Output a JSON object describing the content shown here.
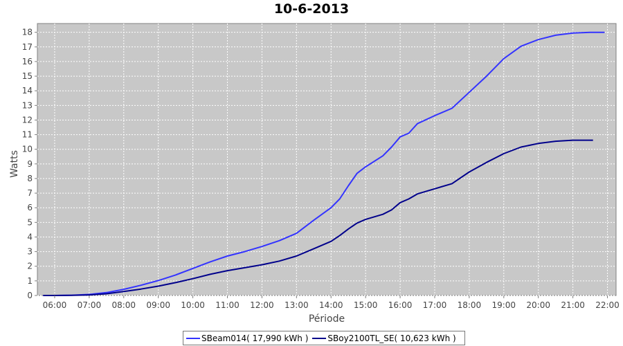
{
  "chart_data": {
    "type": "line",
    "title": "10-6-2013",
    "xlabel": "Période",
    "ylabel": "Watts",
    "xlim": [
      "05:30",
      "22:15"
    ],
    "ylim": [
      0,
      18.6
    ],
    "xticks": [
      "06:00",
      "07:00",
      "08:00",
      "09:00",
      "10:00",
      "11:00",
      "12:00",
      "13:00",
      "14:00",
      "15:00",
      "16:00",
      "17:00",
      "18:00",
      "19:00",
      "20:00",
      "21:00",
      "22:00"
    ],
    "yticks": [
      0,
      1,
      2,
      3,
      4,
      5,
      6,
      7,
      8,
      9,
      10,
      11,
      12,
      13,
      14,
      15,
      16,
      17,
      18
    ],
    "grid": true,
    "legend_position": "bottom",
    "background": "#c8c8c8",
    "series": [
      {
        "name": "SBeam014( 17,990 kWh )",
        "color": "#3333ff",
        "x": [
          "05:40",
          "06:00",
          "06:30",
          "07:00",
          "07:30",
          "08:00",
          "08:30",
          "09:00",
          "09:30",
          "10:00",
          "10:30",
          "11:00",
          "11:30",
          "12:00",
          "12:30",
          "13:00",
          "13:30",
          "14:00",
          "14:15",
          "14:30",
          "14:45",
          "15:00",
          "15:30",
          "15:45",
          "16:00",
          "16:15",
          "16:30",
          "17:00",
          "17:30",
          "18:00",
          "18:30",
          "19:00",
          "19:30",
          "20:00",
          "20:30",
          "21:00",
          "21:30",
          "21:55"
        ],
        "values": [
          0,
          0,
          0.02,
          0.07,
          0.2,
          0.42,
          0.7,
          1.02,
          1.4,
          1.85,
          2.3,
          2.7,
          3.0,
          3.35,
          3.75,
          4.25,
          5.15,
          6.0,
          6.6,
          7.5,
          8.35,
          8.8,
          9.55,
          10.15,
          10.85,
          11.1,
          11.75,
          12.3,
          12.8,
          13.9,
          15.0,
          16.2,
          17.05,
          17.5,
          17.8,
          17.95,
          18.0,
          18.0
        ]
      },
      {
        "name": "SBoy2100TL_SE( 10,623 kWh )",
        "color": "#00008b",
        "x": [
          "05:40",
          "06:00",
          "06:30",
          "07:00",
          "07:30",
          "08:00",
          "08:30",
          "09:00",
          "09:30",
          "10:00",
          "10:30",
          "11:00",
          "11:30",
          "12:00",
          "12:30",
          "13:00",
          "13:30",
          "14:00",
          "14:15",
          "14:30",
          "14:45",
          "15:00",
          "15:30",
          "15:45",
          "16:00",
          "16:15",
          "16:30",
          "17:00",
          "17:30",
          "18:00",
          "18:30",
          "19:00",
          "19:30",
          "20:00",
          "20:30",
          "21:00",
          "21:30",
          "21:35"
        ],
        "values": [
          0,
          0,
          0.01,
          0.04,
          0.12,
          0.27,
          0.44,
          0.64,
          0.88,
          1.15,
          1.45,
          1.7,
          1.9,
          2.1,
          2.35,
          2.7,
          3.2,
          3.7,
          4.1,
          4.55,
          4.95,
          5.2,
          5.55,
          5.85,
          6.35,
          6.6,
          6.95,
          7.3,
          7.65,
          8.45,
          9.1,
          9.7,
          10.15,
          10.4,
          10.55,
          10.62,
          10.62,
          10.62
        ]
      }
    ]
  }
}
